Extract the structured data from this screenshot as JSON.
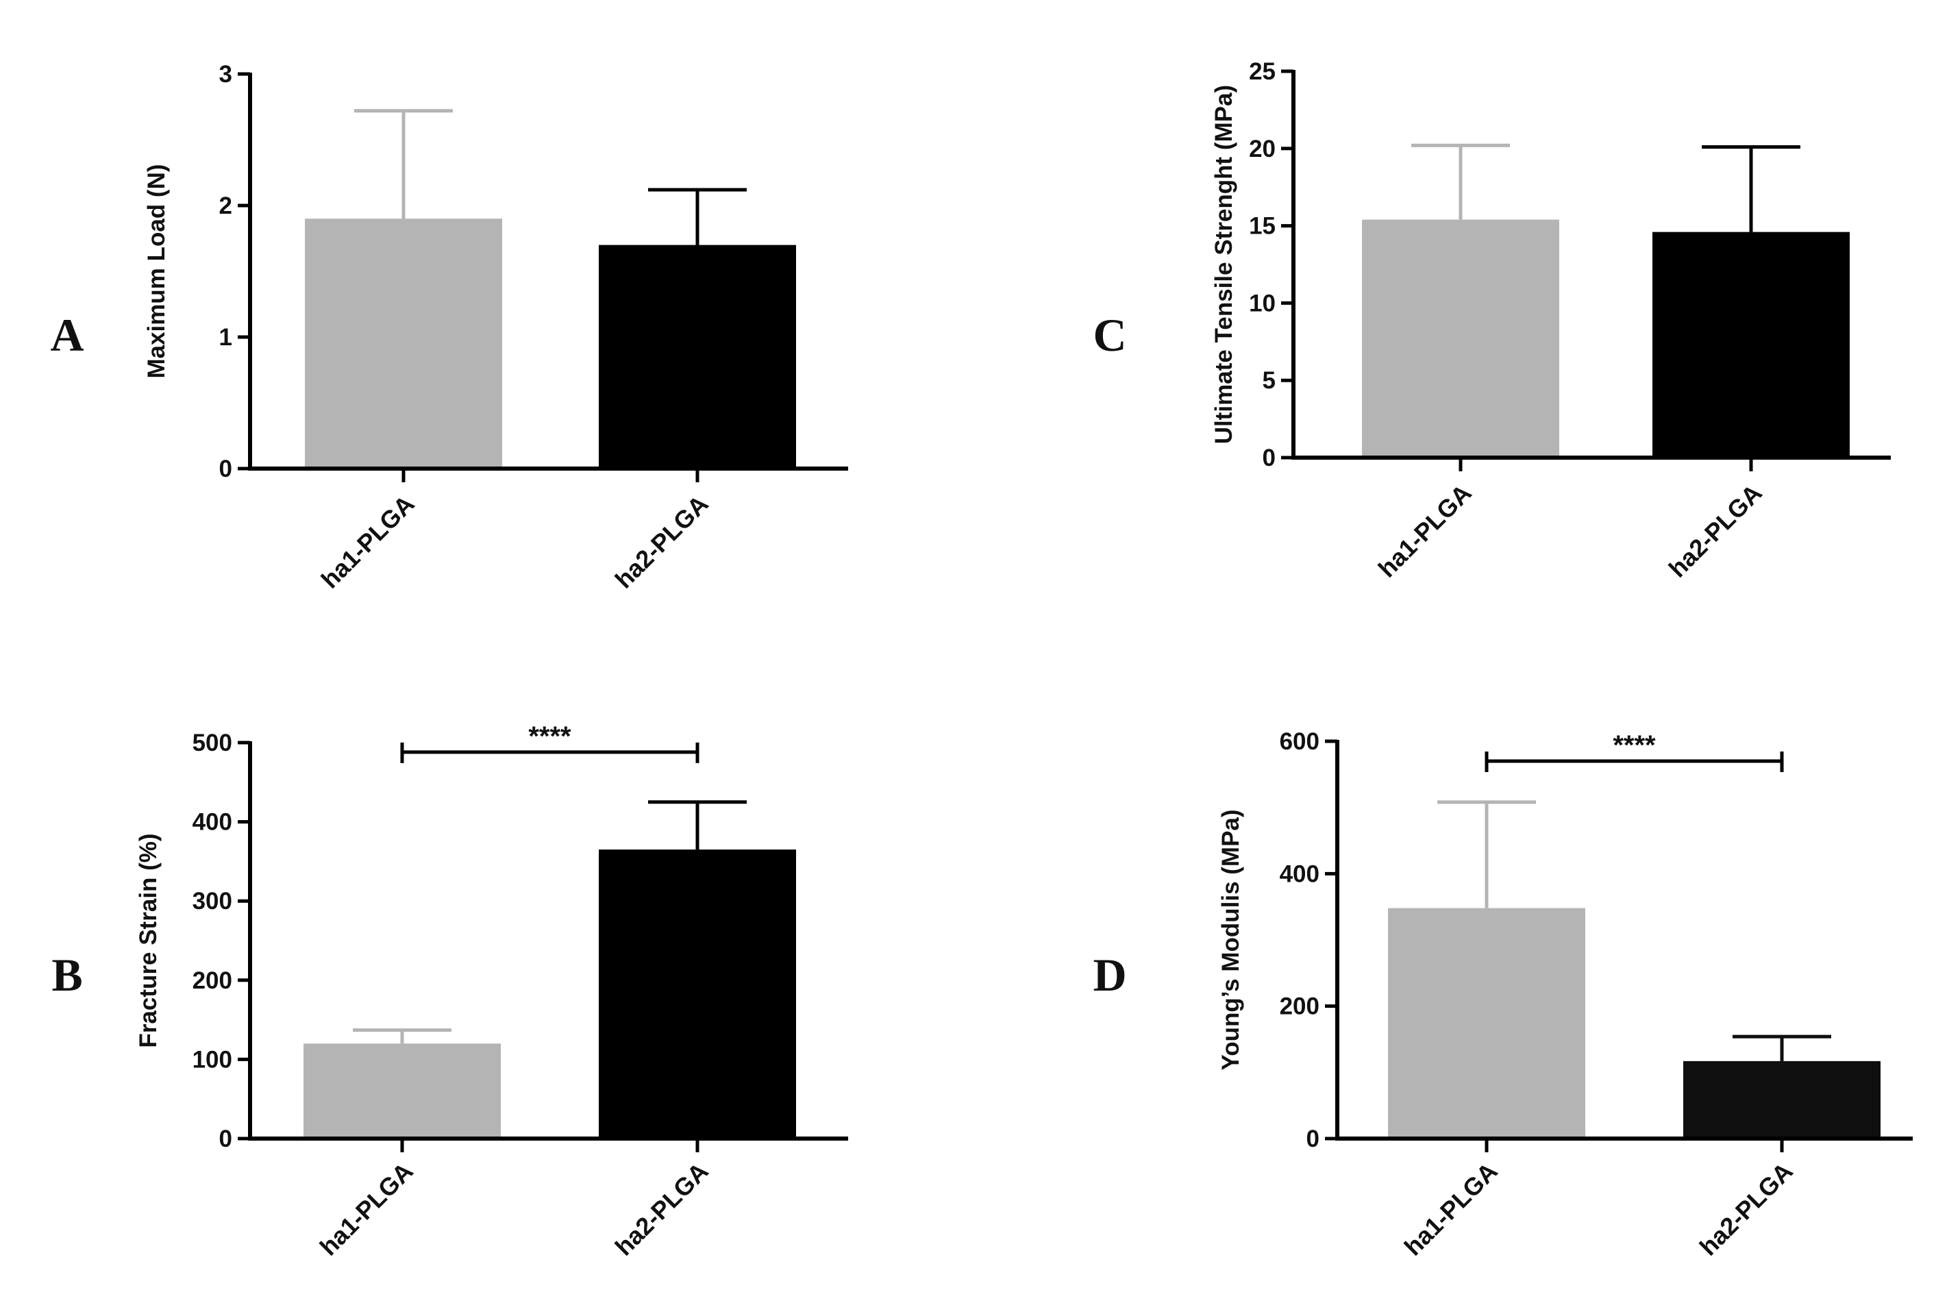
{
  "figure": {
    "panels": [
      "A",
      "C",
      "B",
      "D"
    ]
  },
  "chart_data": [
    {
      "panel": "A",
      "type": "bar",
      "title": "",
      "xlabel": "",
      "ylabel": "Maximum Load (N)",
      "categories": [
        "ha1-PLGA",
        "ha2-PLGA"
      ],
      "values": [
        1.9,
        1.7
      ],
      "errors": [
        0.82,
        0.42
      ],
      "bar_colors": [
        "#b4b4b4",
        "#000000"
      ],
      "ylim": [
        0,
        3
      ],
      "yticks": [
        0,
        1,
        2,
        3
      ],
      "significance": null
    },
    {
      "panel": "C",
      "type": "bar",
      "title": "",
      "xlabel": "",
      "ylabel": "Ultimate Tensile Strenght (MPa)",
      "categories": [
        "ha1-PLGA",
        "ha2-PLGA"
      ],
      "values": [
        15.4,
        14.6
      ],
      "errors": [
        4.8,
        5.5
      ],
      "bar_colors": [
        "#b4b4b4",
        "#000000"
      ],
      "ylim": [
        0,
        25
      ],
      "yticks": [
        0,
        5,
        10,
        15,
        20,
        25
      ],
      "significance": null
    },
    {
      "panel": "B",
      "type": "bar",
      "title": "",
      "xlabel": "",
      "ylabel": "Fracture Strain (%)",
      "categories": [
        "ha1-PLGA",
        "ha2-PLGA"
      ],
      "values": [
        120,
        365
      ],
      "errors": [
        17,
        60
      ],
      "bar_colors": [
        "#b4b4b4",
        "#000000"
      ],
      "ylim": [
        0,
        500
      ],
      "yticks": [
        0,
        100,
        200,
        300,
        400,
        500
      ],
      "significance": {
        "label": "****",
        "level": 488
      }
    },
    {
      "panel": "D",
      "type": "bar",
      "title": "",
      "xlabel": "",
      "ylabel": "Young’s Modulis (MPa)",
      "categories": [
        "ha1-PLGA",
        "ha2-PLGA"
      ],
      "values": [
        348,
        117
      ],
      "errors": [
        160,
        37
      ],
      "bar_colors": [
        "#b4b4b4",
        "#0f0f0f"
      ],
      "ylim": [
        0,
        600
      ],
      "yticks": [
        0,
        200,
        400,
        600
      ],
      "significance": {
        "label": "****",
        "level": 570
      }
    }
  ]
}
